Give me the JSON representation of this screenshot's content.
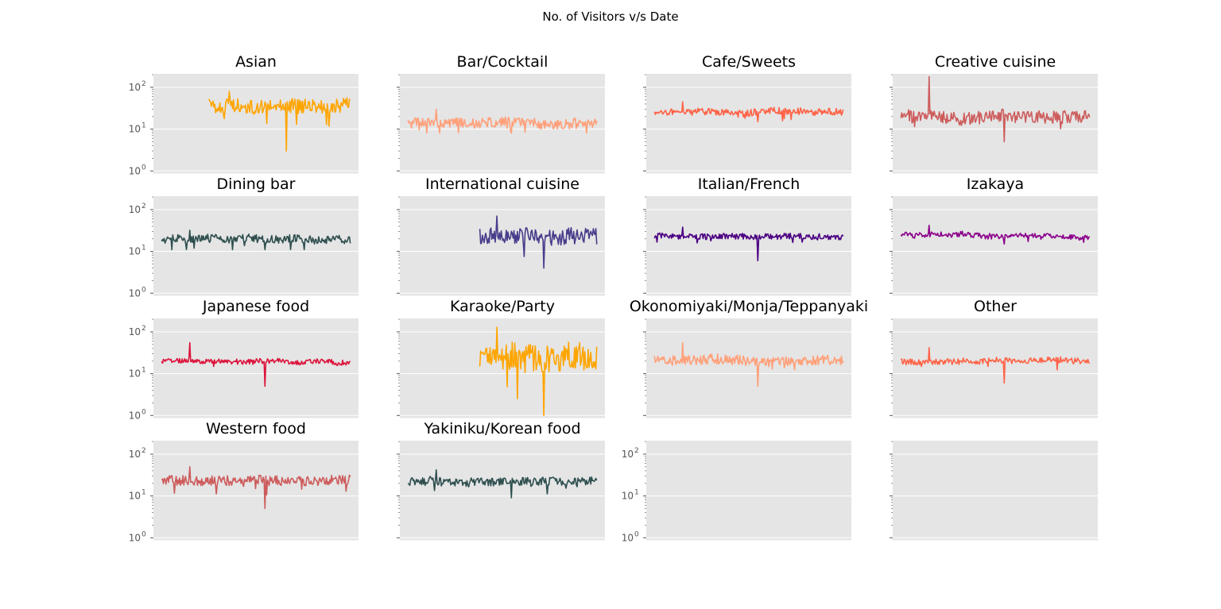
{
  "chart_data": {
    "type": "line",
    "title": "No. of Visitors v/s Date",
    "y_scale": "log",
    "ylim": [
      1,
      200
    ],
    "y_tick_labels": [
      "10^0",
      "10^1",
      "10^2"
    ],
    "grid": true,
    "legend": "none",
    "x_axis": "date (tick labels not shown)",
    "panels": [
      {
        "title": "Asian",
        "color": "#FFA500",
        "x_range": [
          0.27,
          0.96
        ],
        "median": 35,
        "spread": 0.18,
        "y_min": 3,
        "y_max": 80,
        "show_y_labels": true
      },
      {
        "title": "Bar/Cocktail",
        "color": "#FFA07A",
        "x_range": [
          0.04,
          0.96
        ],
        "median": 14,
        "spread": 0.12,
        "y_min": 8,
        "y_max": 30,
        "show_y_labels": false
      },
      {
        "title": "Cafe/Sweets",
        "color": "#FF6347",
        "x_range": [
          0.04,
          0.96
        ],
        "median": 25,
        "spread": 0.08,
        "y_min": 15,
        "y_max": 45,
        "show_y_labels": false
      },
      {
        "title": "Creative cuisine",
        "color": "#CD5C5C",
        "x_range": [
          0.04,
          0.96
        ],
        "median": 20,
        "spread": 0.15,
        "y_min": 5,
        "y_max": 180,
        "show_y_labels": false
      },
      {
        "title": "Dining bar",
        "color": "#2F4F4F",
        "x_range": [
          0.04,
          0.96
        ],
        "median": 20,
        "spread": 0.1,
        "y_min": 11,
        "y_max": 32,
        "show_y_labels": true
      },
      {
        "title": "International cuisine",
        "color": "#483D8B",
        "x_range": [
          0.39,
          0.96
        ],
        "median": 22,
        "spread": 0.2,
        "y_min": 4,
        "y_max": 70,
        "show_y_labels": false
      },
      {
        "title": "Italian/French",
        "color": "#4B0082",
        "x_range": [
          0.04,
          0.96
        ],
        "median": 23,
        "spread": 0.07,
        "y_min": 6,
        "y_max": 38,
        "show_y_labels": false
      },
      {
        "title": "Izakaya",
        "color": "#8B008B",
        "x_range": [
          0.04,
          0.96
        ],
        "median": 24,
        "spread": 0.06,
        "y_min": 15,
        "y_max": 42,
        "show_y_labels": false
      },
      {
        "title": "Japanese food",
        "color": "#DC143C",
        "x_range": [
          0.04,
          0.96
        ],
        "median": 20,
        "spread": 0.06,
        "y_min": 5,
        "y_max": 55,
        "show_y_labels": true
      },
      {
        "title": "Karaoke/Party",
        "color": "#FFA500",
        "x_range": [
          0.39,
          0.96
        ],
        "median": 25,
        "spread": 0.35,
        "y_min": 1,
        "y_max": 130,
        "show_y_labels": false
      },
      {
        "title": "Okonomiyaki/Monja/Teppanyaki",
        "color": "#FFA07A",
        "x_range": [
          0.04,
          0.96
        ],
        "median": 20,
        "spread": 0.12,
        "y_min": 5,
        "y_max": 55,
        "show_y_labels": false
      },
      {
        "title": "Other",
        "color": "#FF6347",
        "x_range": [
          0.04,
          0.96
        ],
        "median": 20,
        "spread": 0.07,
        "y_min": 6,
        "y_max": 42,
        "show_y_labels": false
      },
      {
        "title": "Western food",
        "color": "#CD5C5C",
        "x_range": [
          0.04,
          0.96
        ],
        "median": 24,
        "spread": 0.12,
        "y_min": 5,
        "y_max": 50,
        "show_y_labels": true
      },
      {
        "title": "Yakiniku/Korean food",
        "color": "#2F4F4F",
        "x_range": [
          0.04,
          0.96
        ],
        "median": 22,
        "spread": 0.1,
        "y_min": 9,
        "y_max": 42,
        "show_y_labels": false
      },
      {
        "title": "",
        "color": "",
        "x_range": [],
        "median": null,
        "spread": 0,
        "y_min": null,
        "y_max": null,
        "show_y_labels": true
      },
      {
        "title": "",
        "color": "",
        "x_range": [],
        "median": null,
        "spread": 0,
        "y_min": null,
        "y_max": null,
        "show_y_labels": false
      }
    ]
  }
}
